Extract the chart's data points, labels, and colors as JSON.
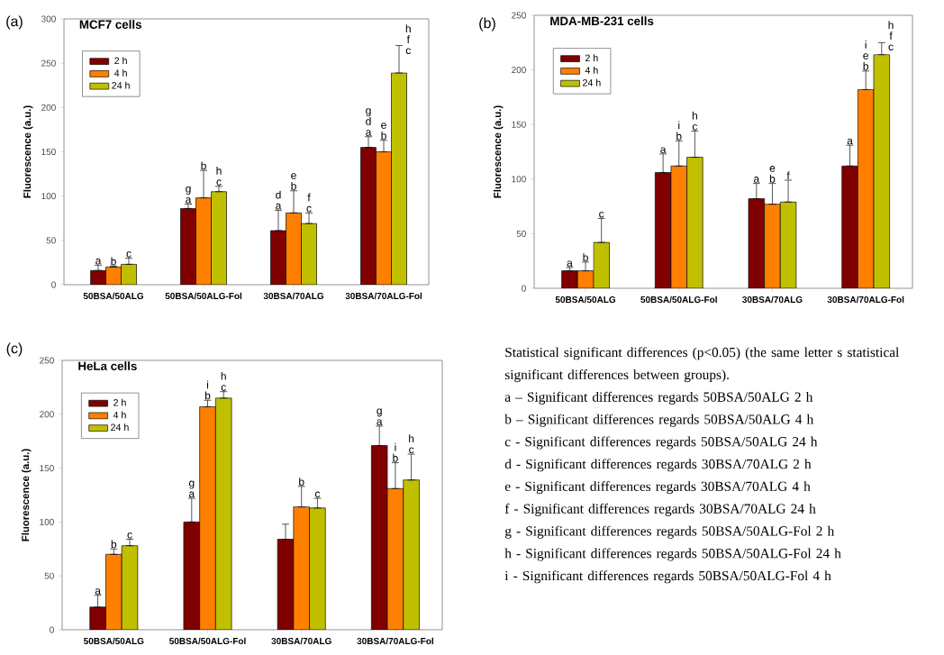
{
  "chart_data": [
    {
      "type": "bar",
      "title": "MCF7 cells",
      "ylabel": "Fluorescence (a.u.)",
      "annotations": [
        "(a)"
      ],
      "categories": [
        "50BSA/50ALG",
        "50BSA/50ALG-Fol",
        "30BSA/70ALG",
        "30BSA/70ALG-Fol"
      ],
      "ylim": [
        0,
        300
      ],
      "yticks": [
        0,
        50,
        100,
        150,
        200,
        250,
        300
      ],
      "legend": "top left",
      "series": [
        {
          "name": "2 h",
          "color": "#800000",
          "values": [
            16,
            86,
            61,
            155
          ],
          "errors": [
            [
              16,
              22
            ],
            [
              86,
              91
            ],
            [
              61,
              84
            ],
            [
              155,
              167
            ]
          ],
          "value_labels": [
            "a",
            "g a",
            "d a",
            "g d a"
          ]
        },
        {
          "name": "4 h",
          "color": "#ff8000",
          "values": [
            20,
            98,
            81,
            150
          ],
          "errors": [
            [
              20,
              21
            ],
            [
              98,
              129
            ],
            [
              81,
              106
            ],
            [
              150,
              163
            ]
          ],
          "value_labels": [
            "b",
            "b",
            "e b",
            "e b"
          ]
        },
        {
          "name": "24 h",
          "color": "#c0c000",
          "values": [
            23,
            105,
            69,
            239
          ],
          "errors": [
            [
              23,
              30
            ],
            [
              105,
              111
            ],
            [
              69,
              81
            ],
            [
              239,
              270
            ]
          ],
          "value_labels": [
            "c",
            "h c",
            "f c",
            "h f c"
          ]
        }
      ]
    },
    {
      "type": "bar",
      "title": "MDA-MB-231 cells",
      "ylabel": "Fluorescence (a.u.)",
      "annotations": [
        "(b)"
      ],
      "categories": [
        "50BSA/50ALG",
        "50BSA/50ALG-Fol",
        "30BSA/70ALG",
        "30BSA/70ALG-Fol"
      ],
      "ylim": [
        0,
        250
      ],
      "yticks": [
        0,
        50,
        100,
        150,
        200,
        250
      ],
      "legend": "top left",
      "series": [
        {
          "name": "2 h",
          "color": "#800000",
          "values": [
            16,
            106,
            82,
            112
          ],
          "errors": [
            [
              16,
              19
            ],
            [
              106,
              123
            ],
            [
              82,
              96
            ],
            [
              112,
              131
            ]
          ],
          "value_labels": [
            "a",
            "a",
            "a",
            "a"
          ]
        },
        {
          "name": "4 h",
          "color": "#ff8000",
          "values": [
            16,
            112,
            77,
            182
          ],
          "errors": [
            [
              16,
              24
            ],
            [
              112,
              135
            ],
            [
              77,
              96
            ],
            [
              182,
              199
            ]
          ],
          "value_labels": [
            "b",
            "i b",
            "e b",
            "i e b"
          ]
        },
        {
          "name": "24 h",
          "color": "#c0c000",
          "values": [
            42,
            120,
            79,
            214
          ],
          "errors": [
            [
              42,
              64
            ],
            [
              120,
              144
            ],
            [
              79,
              99
            ],
            [
              214,
              225
            ]
          ],
          "value_labels": [
            "c",
            "h c",
            "f",
            "h f c"
          ]
        }
      ]
    },
    {
      "type": "bar",
      "title": "HeLa cells",
      "ylabel": "Fluorescence (a.u.)",
      "annotations": [
        "(c)"
      ],
      "categories": [
        "50BSA/50ALG",
        "50BSA/50ALG-Fol",
        "30BSA/70ALG",
        "30BSA/70ALG-Fol"
      ],
      "ylim": [
        0,
        250
      ],
      "yticks": [
        0,
        50,
        100,
        150,
        200,
        250
      ],
      "legend": "top left",
      "series": [
        {
          "name": "2 h",
          "color": "#800000",
          "values": [
            21,
            100,
            84,
            171
          ],
          "errors": [
            [
              21,
              32
            ],
            [
              100,
              122
            ],
            [
              84,
              98
            ],
            [
              171,
              189
            ]
          ],
          "value_labels": [
            "a",
            "g a",
            null,
            "g a"
          ]
        },
        {
          "name": "4 h",
          "color": "#ff8000",
          "values": [
            70,
            207,
            114,
            131
          ],
          "errors": [
            [
              70,
              75
            ],
            [
              207,
              213
            ],
            [
              114,
              133
            ],
            [
              131,
              155
            ]
          ],
          "value_labels": [
            "b",
            "i b",
            "b",
            "i b"
          ]
        },
        {
          "name": "24 h",
          "color": "#c0c000",
          "values": [
            78,
            215,
            113,
            139
          ],
          "errors": [
            [
              78,
              84
            ],
            [
              215,
              221
            ],
            [
              113,
              122
            ],
            [
              139,
              163
            ]
          ],
          "value_labels": [
            "c",
            "h c",
            "c",
            "h c"
          ]
        }
      ]
    },
    {
      "type": "other",
      "annotations": [
        "Statistical significant differences (p<0.05) (the same letter s statistical significant differences between groups).",
        "a – Significant differences regards 50BSA/50ALG 2 h",
        "b – Significant differences regards 50BSA/50ALG 4 h",
        "c - Significant differences regards 50BSA/50ALG 24 h",
        "d - Significant differences regards 30BSA/70ALG 2 h",
        "e - Significant differences regards 30BSA/70ALG 4 h",
        "f - Significant differences regards 30BSA/70ALG 24 h",
        "g - Significant differences regards 50BSA/50ALG-Fol 2 h",
        "h - Significant differences regards 50BSA/50ALG-Fol 24 h",
        "i - Significant differences regards 50BSA/50ALG-Fol 4 h"
      ]
    }
  ]
}
